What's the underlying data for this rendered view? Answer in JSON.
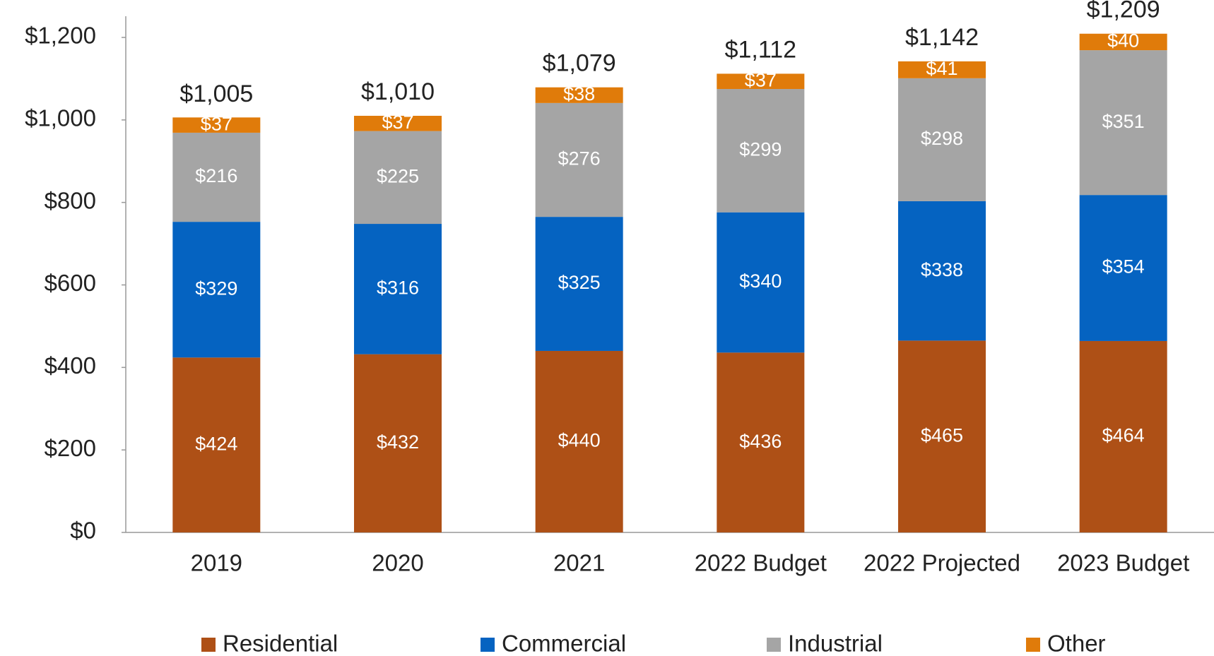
{
  "chart_data": {
    "type": "stacked_bar",
    "categories": [
      "2019",
      "2020",
      "2021",
      "2022 Budget",
      "2022 Projected",
      "2023 Budget"
    ],
    "series": [
      {
        "name": "Residential",
        "color": "#ae5016",
        "values": [
          424,
          432,
          440,
          436,
          465,
          464
        ],
        "value_labels": [
          "$424",
          "$432",
          "$440",
          "$436",
          "$465",
          "$464"
        ]
      },
      {
        "name": "Commercial",
        "color": "#0563c1",
        "values": [
          329,
          316,
          325,
          340,
          338,
          354
        ],
        "value_labels": [
          "$329",
          "$316",
          "$325",
          "$340",
          "$338",
          "$354"
        ]
      },
      {
        "name": "Industrial",
        "color": "#a5a5a5",
        "values": [
          216,
          225,
          276,
          299,
          298,
          351
        ],
        "value_labels": [
          "$216",
          "$225",
          "$276",
          "$299",
          "$298",
          "$351"
        ]
      },
      {
        "name": "Other",
        "color": "#e07b0a",
        "values": [
          37,
          37,
          38,
          37,
          41,
          40
        ],
        "value_labels": [
          "$37",
          "$37",
          "$38",
          "$37",
          "$41",
          "$40"
        ]
      }
    ],
    "totals": {
      "values": [
        1005,
        1010,
        1079,
        1112,
        1142,
        1209
      ],
      "value_labels": [
        "$1,005",
        "$1,010",
        "$1,079",
        "$1,112",
        "$1,142",
        "$1,209"
      ]
    },
    "ylim": [
      0,
      1200
    ],
    "yticks": [
      {
        "value": 0,
        "label": "$0"
      },
      {
        "value": 200,
        "label": "$200"
      },
      {
        "value": 400,
        "label": "$400"
      },
      {
        "value": 600,
        "label": "$600"
      },
      {
        "value": 800,
        "label": "$800"
      },
      {
        "value": 1000,
        "label": "$1,000"
      },
      {
        "value": 1200,
        "label": "$1,200"
      }
    ],
    "grid": false,
    "legend": "bottom"
  }
}
